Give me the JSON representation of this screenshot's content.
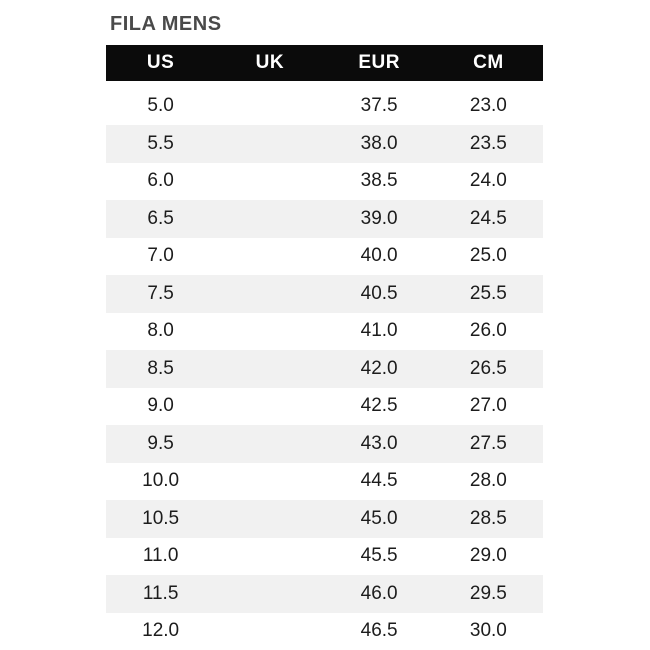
{
  "page": {
    "title": "FILA MENS"
  },
  "theme": {
    "page_bg": "#ffffff",
    "header_bg": "#0b0b0b",
    "header_text": "#ffffff",
    "row_bg": "#ffffff",
    "row_alt_bg": "#f1f1f1",
    "title_color": "#4a4a4a",
    "cell_text": "#1c1c1c"
  },
  "chart_data": {
    "type": "table",
    "title": "FILA MENS",
    "columns": [
      "US",
      "UK",
      "EUR",
      "CM"
    ],
    "rows": [
      [
        "5.0",
        "",
        "37.5",
        "23.0"
      ],
      [
        "5.5",
        "",
        "38.0",
        "23.5"
      ],
      [
        "6.0",
        "",
        "38.5",
        "24.0"
      ],
      [
        "6.5",
        "",
        "39.0",
        "24.5"
      ],
      [
        "7.0",
        "",
        "40.0",
        "25.0"
      ],
      [
        "7.5",
        "",
        "40.5",
        "25.5"
      ],
      [
        "8.0",
        "",
        "41.0",
        "26.0"
      ],
      [
        "8.5",
        "",
        "42.0",
        "26.5"
      ],
      [
        "9.0",
        "",
        "42.5",
        "27.0"
      ],
      [
        "9.5",
        "",
        "43.0",
        "27.5"
      ],
      [
        "10.0",
        "",
        "44.5",
        "28.0"
      ],
      [
        "10.5",
        "",
        "45.0",
        "28.5"
      ],
      [
        "11.0",
        "",
        "45.5",
        "29.0"
      ],
      [
        "11.5",
        "",
        "46.0",
        "29.5"
      ],
      [
        "12.0",
        "",
        "46.5",
        "30.0"
      ]
    ]
  }
}
